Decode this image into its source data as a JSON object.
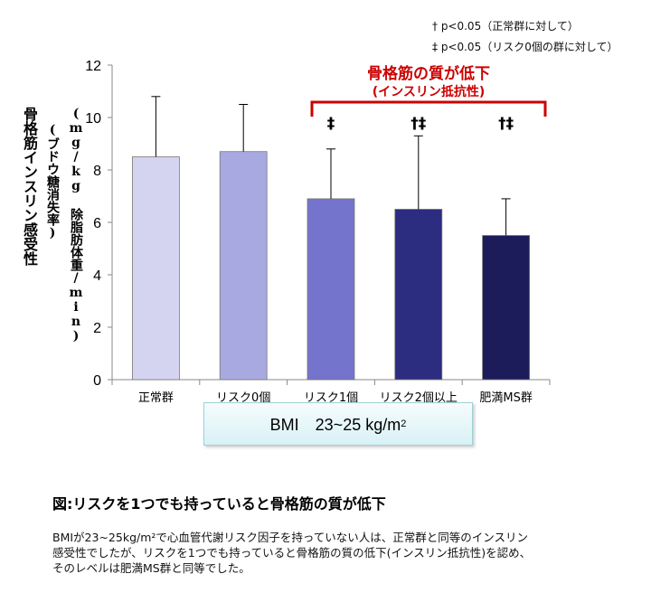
{
  "notes": {
    "line1": "† p<0.05（正常群に対して）",
    "line2": "‡  p<0.05（リスク0個の群に対して）"
  },
  "y_axis_label": {
    "line1": "骨格筋インスリン感受性",
    "line2": "(ブドウ糖消失率)",
    "line3": "(mg/kg 除脂肪体重/min)"
  },
  "bmi_label": {
    "text": "BMI　23~25 kg/m",
    "sup": "2"
  },
  "caption": {
    "title": "図:リスクを1つでも持っていると骨格筋の質が低下",
    "line1": "BMIが23~25kg/m²で心血管代謝リスク因子を持っていない人は、正常群と同等のインスリン",
    "line2": "感受性でしたが、リスクを1つでも持っていると骨格筋の質の低下(インスリン抵抗性)を認め、",
    "line3": "そのレベルは肥満MS群と同等でした。"
  },
  "chart_data": {
    "type": "bar",
    "categories": [
      "正常群",
      "リスク0個",
      "リスク1個",
      "リスク2個以上",
      "肥満MS群"
    ],
    "values": [
      8.5,
      8.7,
      6.9,
      6.5,
      5.5
    ],
    "error_upper": [
      2.3,
      1.8,
      1.9,
      2.8,
      1.4
    ],
    "significance": [
      "",
      "",
      "‡",
      "†‡",
      "†‡"
    ],
    "colors": [
      "#d4d4f0",
      "#a9a9e1",
      "#7474cc",
      "#2c2c80",
      "#1c1c5a"
    ],
    "ylim": [
      0,
      12
    ],
    "yticks": [
      0,
      2,
      4,
      6,
      8,
      10,
      12
    ],
    "annotation": {
      "title": "骨格筋の質が低下",
      "subtitle": "(インスリン抵抗性)",
      "color": "#cc0000"
    },
    "grid": false
  }
}
